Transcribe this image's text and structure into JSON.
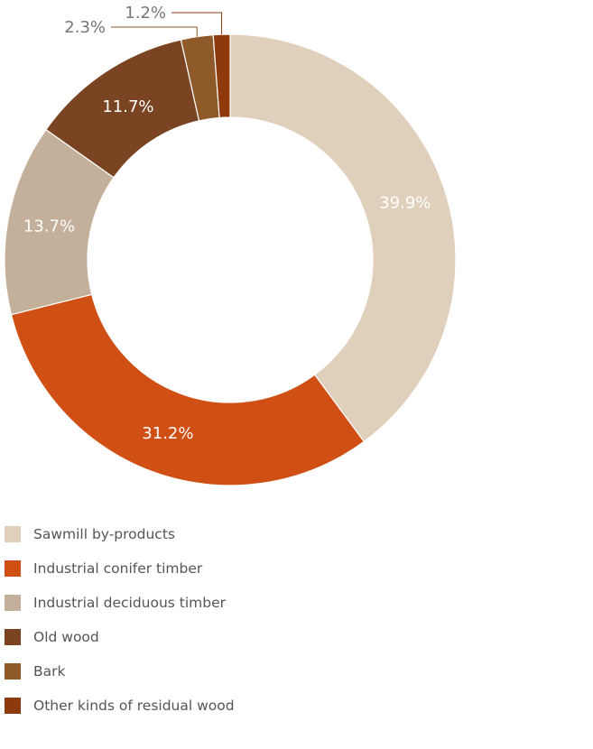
{
  "chart_data": {
    "type": "pie",
    "donut": true,
    "legend_position": "bottom-left",
    "categories": [
      "Sawmill by-products",
      "Industrial conifer timber",
      "Industrial deciduous timber",
      "Old wood",
      "Bark",
      "Other kinds of residual wood"
    ],
    "values": [
      39.9,
      31.2,
      13.7,
      11.7,
      2.3,
      1.2
    ],
    "labels": [
      "39.9%",
      "31.2%",
      "13.7%",
      "11.7%",
      "2.3%",
      "1.2%"
    ],
    "colors": [
      "#e0cfba",
      "#d04f14",
      "#c4b09a",
      "#7a4423",
      "#8e5a2a",
      "#8f3a0c"
    ]
  }
}
